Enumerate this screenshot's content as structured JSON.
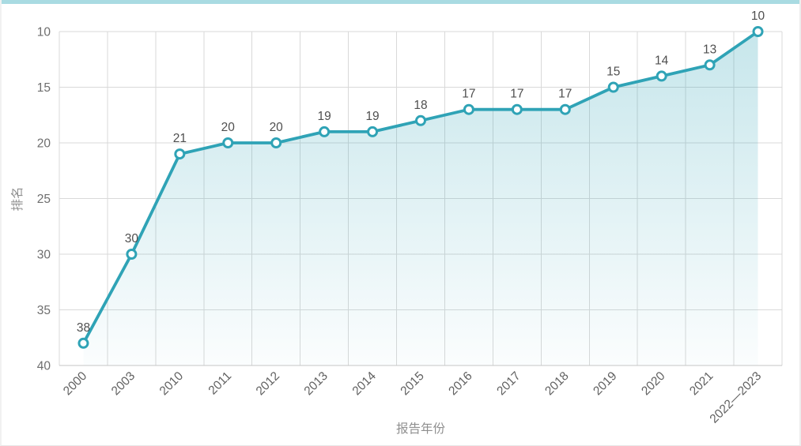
{
  "page": {
    "top_bar_color": "#a9dbe2",
    "background": "#ffffff"
  },
  "chart_data": {
    "type": "line",
    "title": "",
    "xlabel": "报告年份",
    "ylabel": "排名",
    "categories": [
      "2000",
      "2003",
      "2010",
      "2011",
      "2012",
      "2013",
      "2014",
      "2015",
      "2016",
      "2017",
      "2018",
      "2019",
      "2020",
      "2021",
      "2022—2023"
    ],
    "values": [
      38,
      30,
      21,
      20,
      20,
      19,
      19,
      18,
      17,
      17,
      17,
      15,
      14,
      13,
      10
    ],
    "yticks": [
      10,
      15,
      20,
      25,
      30,
      35,
      40
    ],
    "ylim_bottom": 40,
    "ylim_top": 10,
    "y_axis_inverted": true,
    "grid": "on",
    "legend": "none",
    "point_labels_shown": true,
    "colors": {
      "line": "#2fa3b6",
      "marker_fill": "#ffffff",
      "area_top": "rgba(47,163,182,0.27)",
      "area_bottom": "rgba(47,163,182,0.02)",
      "grid": "#d9d9d9",
      "axis": "#c6c6c6",
      "tick_text": "#6e6e6e",
      "x_tick_text": "#606060",
      "point_label_text": "#4f4f4f",
      "axis_title_text": "#8f8f8f"
    }
  }
}
